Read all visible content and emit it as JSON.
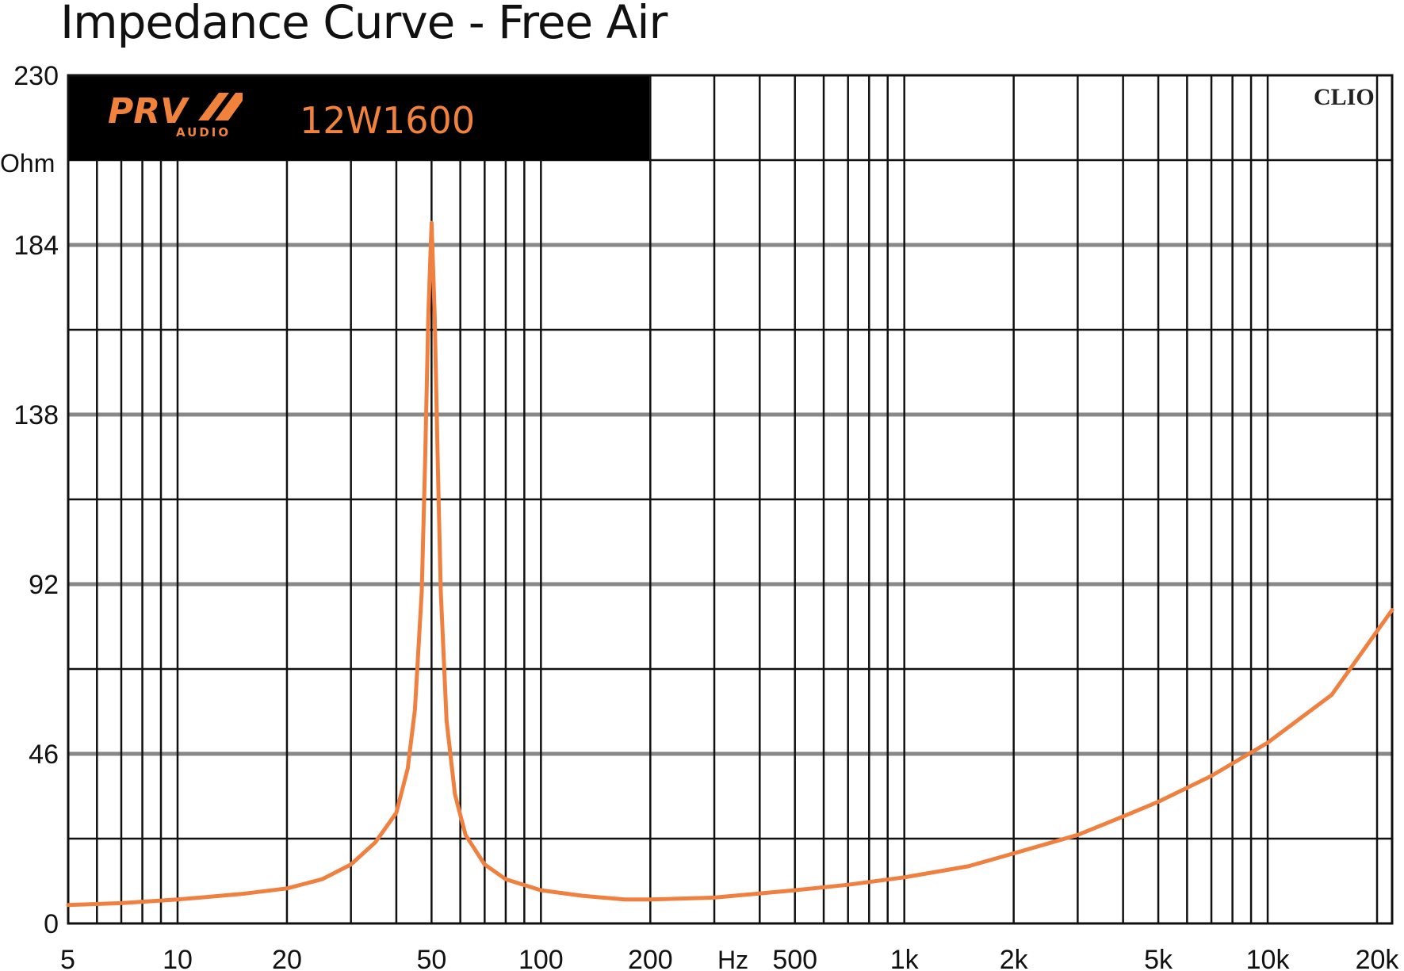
{
  "title": "Impedance Curve - Free Air",
  "colors": {
    "curve": "#f08040",
    "accent": "#f0823c",
    "banner": "#000000",
    "grid": "#111111",
    "grid_minor": "#888888"
  },
  "banner": {
    "brand": "PRV",
    "brand_sub": "AUDIO",
    "model": "12W1600"
  },
  "watermark_text": "CLIO",
  "chart_data": {
    "type": "line",
    "xscale": "log",
    "xlim": [
      5,
      22000
    ],
    "ylim": [
      0,
      230
    ],
    "x_unit": "Hz",
    "y_unit": "Ohm",
    "y_ticks": [
      0,
      46,
      92,
      138,
      184,
      230
    ],
    "y_tick_labels": [
      "0",
      "46",
      "92",
      "138",
      "184",
      "230"
    ],
    "x_ticks": [
      5,
      10,
      20,
      50,
      100,
      200,
      500,
      1000,
      2000,
      5000,
      10000,
      20000
    ],
    "x_tick_labels": [
      "5",
      "10",
      "20",
      "50",
      "100",
      "200",
      "500",
      "1k",
      "2k",
      "5k",
      "10k",
      "20k"
    ],
    "grid": true,
    "series": [
      {
        "x": [
          5,
          7,
          10,
          15,
          20,
          25,
          30,
          35,
          40,
          43,
          45,
          47,
          48,
          49,
          50,
          51,
          52,
          53,
          55,
          58,
          62,
          70,
          80,
          100,
          130,
          170,
          200,
          300,
          500,
          700,
          1000,
          1500,
          2000,
          3000,
          4000,
          5000,
          7000,
          10000,
          15000,
          22000
        ],
        "y": [
          5,
          5.5,
          6.5,
          8,
          9.5,
          12,
          16,
          22,
          30,
          42,
          58,
          90,
          125,
          165,
          190,
          165,
          125,
          90,
          55,
          35,
          24,
          16,
          12,
          9,
          7.5,
          6.5,
          6.5,
          7,
          9,
          10.5,
          12.5,
          15.5,
          19,
          24,
          29,
          33,
          40,
          49,
          62,
          85
        ]
      }
    ]
  }
}
